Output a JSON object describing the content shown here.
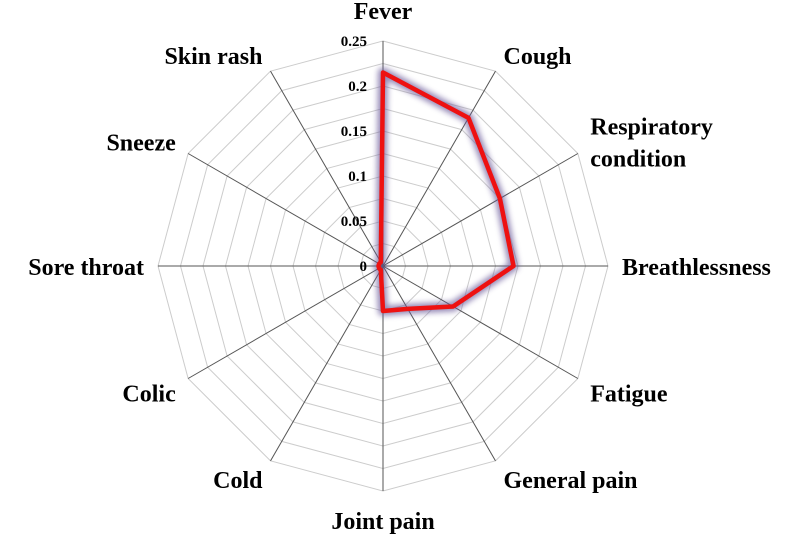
{
  "chart_data": {
    "type": "radar",
    "categories": [
      "Fever",
      "Cough",
      "Respiratory condition",
      "Breathlessness",
      "Fatigue",
      "General pain",
      "Joint pain",
      "Cold",
      "Colic",
      "Sore throat",
      "Sneeze",
      "Skin rash"
    ],
    "label_lines": [
      [
        "Fever"
      ],
      [
        "Cough"
      ],
      [
        "Respiratory",
        "condition"
      ],
      [
        "Breathlessness"
      ],
      [
        "Fatigue"
      ],
      [
        "General pain"
      ],
      [
        "Joint pain"
      ],
      [
        "Cold"
      ],
      [
        "Colic"
      ],
      [
        "Sore throat"
      ],
      [
        "Sneeze"
      ],
      [
        "Skin rash"
      ]
    ],
    "values": [
      0.215,
      0.19,
      0.15,
      0.145,
      0.09,
      0.055,
      0.05,
      0.005,
      0.005,
      0.005,
      0.005,
      0.005
    ],
    "ticks": [
      "0",
      "0.05",
      "0.1",
      "0.15",
      "0.2",
      "0.25"
    ],
    "rmax": 0.25,
    "grid_rings": 10,
    "line_color": "#ee1111",
    "glow_color": "#6a5a9a",
    "spoke_color": "#555555",
    "grid_color": "#cccccc"
  }
}
